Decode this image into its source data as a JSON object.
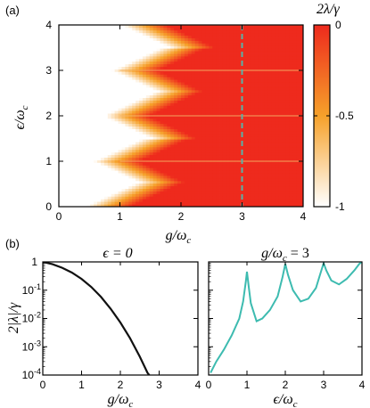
{
  "panel_a": {
    "label": "(a)",
    "ylabel": "ϵ/ω",
    "ylabel_sub": "c",
    "xlabel": "g/ω",
    "xlabel_sub": "c",
    "colorbar_title": "2λ/γ",
    "colorbar_ticks": [
      "0",
      "-0.5",
      "-1"
    ],
    "colorbar_values": [
      0,
      -0.5,
      -1
    ],
    "colors": {
      "low": "#ffffff",
      "mid": "#f6a12a",
      "high": "#ee2a1d",
      "dashed": "#58b3a8"
    }
  },
  "panel_b": {
    "label": "(b)",
    "left_title": "ϵ = 0",
    "right_title": "g/ω",
    "right_title_sub": "c",
    "right_title_eq": " = 3",
    "ylabel": "2|λ|/γ",
    "left_xlabel": "g/ω",
    "left_xlabel_sub": "c",
    "right_xlabel": "ϵ/ω",
    "right_xlabel_sub": "c",
    "y_ticks": [
      {
        "base": "1",
        "exp": ""
      },
      {
        "base": "10",
        "exp": "-1"
      },
      {
        "base": "10",
        "exp": "-2"
      },
      {
        "base": "10",
        "exp": "-3"
      },
      {
        "base": "10",
        "exp": "-4"
      }
    ],
    "line_colors": {
      "left": "#111111",
      "right": "#3dbbb0"
    }
  },
  "chart_data": [
    {
      "type": "heatmap",
      "title": "",
      "xlabel": "g/ω_c",
      "ylabel": "ϵ/ω_c",
      "xlim": [
        0,
        4
      ],
      "ylim": [
        0,
        4
      ],
      "x_ticks": [
        0,
        1,
        2,
        3,
        4
      ],
      "y_ticks": [
        0,
        1,
        2,
        3,
        4
      ],
      "colorbar": {
        "label": "2λ/γ",
        "range": [
          -1,
          0
        ],
        "ticks": [
          0,
          -0.5,
          -1
        ]
      },
      "resonances": [
        1,
        2,
        3,
        4
      ],
      "dashed_line_x": 3
    },
    {
      "type": "line",
      "title": "ϵ = 0",
      "xlabel": "g/ω_c",
      "ylabel": "2|λ|/γ",
      "yscale": "log",
      "xlim": [
        0,
        4
      ],
      "ylim": [
        0.0001,
        1
      ],
      "x_ticks": [
        0,
        1,
        2,
        3,
        4
      ],
      "x": [
        0,
        0.25,
        0.5,
        0.75,
        1.0,
        1.25,
        1.5,
        1.75,
        2.0,
        2.25,
        2.5,
        2.7,
        2.8
      ],
      "y": [
        1,
        0.83,
        0.62,
        0.42,
        0.25,
        0.13,
        0.058,
        0.022,
        0.0072,
        0.002,
        0.00045,
        0.00012,
        8e-05
      ]
    },
    {
      "type": "line",
      "title": "g/ω_c = 3",
      "xlabel": "ϵ/ω_c",
      "ylabel": "2|λ|/γ",
      "yscale": "log",
      "xlim": [
        0,
        4
      ],
      "ylim": [
        0.0001,
        1
      ],
      "x_ticks": [
        0,
        1,
        2,
        3,
        4
      ],
      "x": [
        0.05,
        0.2,
        0.4,
        0.6,
        0.8,
        0.9,
        0.97,
        1.0,
        1.05,
        1.1,
        1.25,
        1.4,
        1.6,
        1.8,
        1.93,
        2.0,
        2.07,
        2.2,
        2.4,
        2.6,
        2.8,
        2.93,
        3.0,
        3.07,
        3.2,
        3.4,
        3.6,
        3.8,
        3.93,
        4.0
      ],
      "y": [
        0.00012,
        0.0003,
        0.0008,
        0.0025,
        0.01,
        0.04,
        0.2,
        0.45,
        0.12,
        0.035,
        0.008,
        0.01,
        0.02,
        0.06,
        0.3,
        0.85,
        0.35,
        0.1,
        0.04,
        0.05,
        0.12,
        0.45,
        0.9,
        0.5,
        0.22,
        0.16,
        0.25,
        0.5,
        0.85,
        1.0
      ]
    }
  ]
}
